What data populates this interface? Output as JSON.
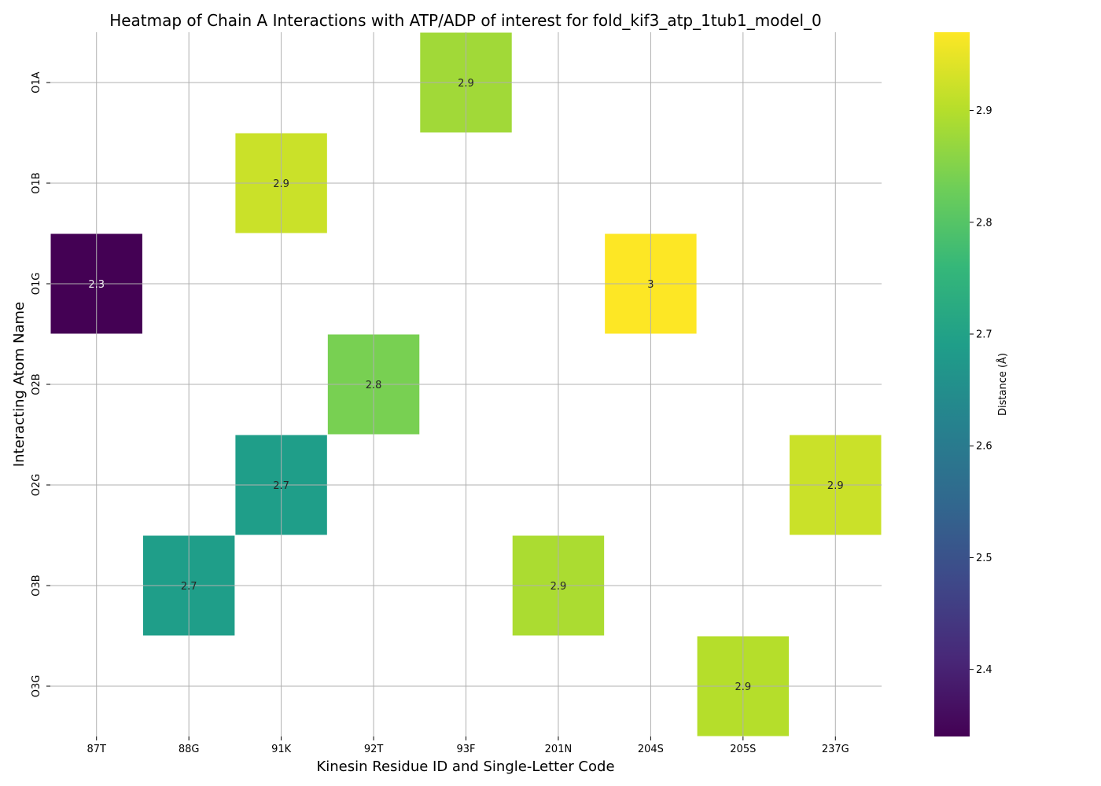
{
  "chart_data": {
    "type": "heatmap",
    "title": "Heatmap of Chain A Interactions with ATP/ADP of interest for fold_kif3_atp_1tub1_model_0",
    "xlabel": "Kinesin Residue ID and Single-Letter Code",
    "ylabel": "Interacting Atom Name",
    "x_categories": [
      "87T",
      "88G",
      "91K",
      "92T",
      "93F",
      "201N",
      "204S",
      "205S",
      "237G"
    ],
    "y_categories": [
      "O1A",
      "O1B",
      "O1G",
      "O2B",
      "O2G",
      "O3B",
      "O3G"
    ],
    "cells": [
      {
        "x": "93F",
        "y": "O1A",
        "value": 2.88,
        "label": "2.9"
      },
      {
        "x": "91K",
        "y": "O1B",
        "value": 2.92,
        "label": "2.9"
      },
      {
        "x": "87T",
        "y": "O1G",
        "value": 2.34,
        "label": "2.3"
      },
      {
        "x": "204S",
        "y": "O1G",
        "value": 2.97,
        "label": "3"
      },
      {
        "x": "92T",
        "y": "O2B",
        "value": 2.84,
        "label": "2.8"
      },
      {
        "x": "91K",
        "y": "O2G",
        "value": 2.69,
        "label": "2.7"
      },
      {
        "x": "237G",
        "y": "O2G",
        "value": 2.92,
        "label": "2.9"
      },
      {
        "x": "88G",
        "y": "O3B",
        "value": 2.69,
        "label": "2.7"
      },
      {
        "x": "201N",
        "y": "O3B",
        "value": 2.89,
        "label": "2.9"
      },
      {
        "x": "205S",
        "y": "O3G",
        "value": 2.9,
        "label": "2.9"
      }
    ],
    "colorbar": {
      "label": "Distance (Å)",
      "colormap": "viridis",
      "vmin": 2.34,
      "vmax": 2.97,
      "ticks": [
        "2.4",
        "2.5",
        "2.6",
        "2.7",
        "2.8",
        "2.9"
      ]
    },
    "grid": true
  }
}
